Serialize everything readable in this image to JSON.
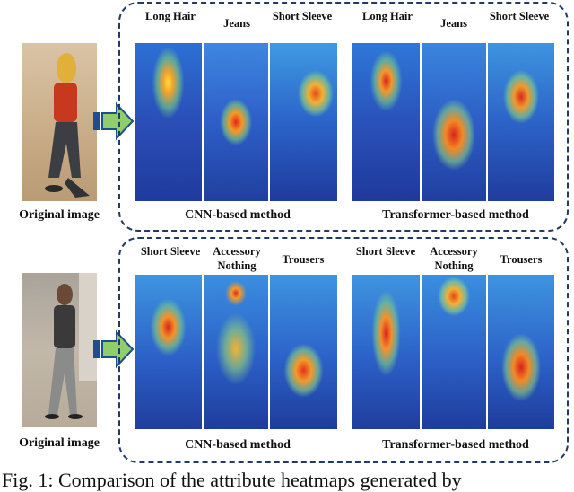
{
  "panels": [
    {
      "original_label": "Original image",
      "attributes": [
        "Long Hair",
        "Jeans",
        "Short Sleeve",
        "Long Hair",
        "Jeans",
        "Short Sleeve"
      ],
      "methods": [
        "CNN-based method",
        "Transformer-based method"
      ]
    },
    {
      "original_label": "Original image",
      "attributes": [
        "Short Sleeve",
        "Accessory Nothing",
        "Trousers",
        "Short Sleeve",
        "Accessory Nothing",
        "Trousers"
      ],
      "methods": [
        "CNN-based method",
        "Transformer-based method"
      ]
    }
  ],
  "caption": "Fig. 1: Comparison of the attribute heatmaps generated by",
  "colors": {
    "dash_border": "#223a66",
    "arrow_fill": "#8fce6a",
    "arrow_border": "#1f4e8c"
  }
}
